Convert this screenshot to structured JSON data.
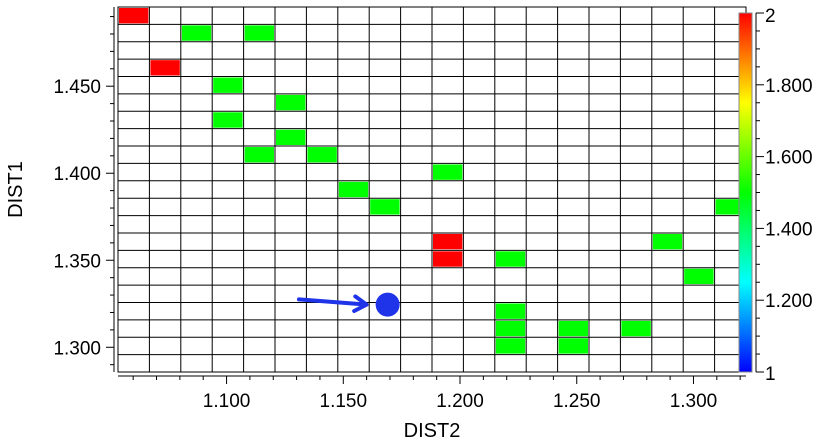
{
  "chart_data": {
    "type": "heatmap",
    "xlabel": "DIST2",
    "ylabel": "DIST1",
    "x_range": [
      1.0535,
      1.3225
    ],
    "y_range": [
      1.2858,
      1.4955
    ],
    "x_ticks": [
      "1.100",
      "1.150",
      "1.200",
      "1.250",
      "1.300"
    ],
    "x_tick_values": [
      1.1,
      1.15,
      1.2,
      1.25,
      1.3
    ],
    "y_ticks": [
      "1.300",
      "1.350",
      "1.400",
      "1.450"
    ],
    "y_tick_values": [
      1.3,
      1.35,
      1.4,
      1.45
    ],
    "x_bins": 20,
    "y_bins": 21,
    "colorbar": {
      "min": 1,
      "max": 2,
      "tick_labels": [
        "1",
        "1.200",
        "1.400",
        "1.600",
        "1.800",
        "2"
      ],
      "tick_values": [
        1,
        1.2,
        1.4,
        1.6,
        1.8,
        2
      ],
      "colormap": [
        "#0000ff",
        "#00ffff",
        "#00ff00",
        "#ffff00",
        "#ff0000"
      ]
    },
    "cells": [
      {
        "x": 1.06,
        "y": 1.4905,
        "value": 2
      },
      {
        "x": 1.087,
        "y": 1.4805,
        "value": 1.5
      },
      {
        "x": 1.115,
        "y": 1.4805,
        "value": 1.5
      },
      {
        "x": 1.074,
        "y": 1.4605,
        "value": 2
      },
      {
        "x": 1.101,
        "y": 1.4505,
        "value": 1.5
      },
      {
        "x": 1.128,
        "y": 1.4405,
        "value": 1.5
      },
      {
        "x": 1.101,
        "y": 1.4305,
        "value": 1.5
      },
      {
        "x": 1.128,
        "y": 1.4205,
        "value": 1.5
      },
      {
        "x": 1.115,
        "y": 1.4105,
        "value": 1.5
      },
      {
        "x": 1.142,
        "y": 1.4105,
        "value": 1.5
      },
      {
        "x": 1.196,
        "y": 1.4005,
        "value": 1.5
      },
      {
        "x": 1.155,
        "y": 1.3905,
        "value": 1.5
      },
      {
        "x": 1.169,
        "y": 1.3805,
        "value": 1.5
      },
      {
        "x": 1.318,
        "y": 1.3805,
        "value": 1.5
      },
      {
        "x": 1.196,
        "y": 1.3605,
        "value": 2
      },
      {
        "x": 1.291,
        "y": 1.3605,
        "value": 1.5
      },
      {
        "x": 1.196,
        "y": 1.3505,
        "value": 2
      },
      {
        "x": 1.223,
        "y": 1.3505,
        "value": 1.5
      },
      {
        "x": 1.304,
        "y": 1.3405,
        "value": 1.5
      },
      {
        "x": 1.223,
        "y": 1.3205,
        "value": 1.5
      },
      {
        "x": 1.223,
        "y": 1.3105,
        "value": 1.5
      },
      {
        "x": 1.25,
        "y": 1.3105,
        "value": 1.5
      },
      {
        "x": 1.277,
        "y": 1.3105,
        "value": 1.5
      },
      {
        "x": 1.223,
        "y": 1.3005,
        "value": 1.5
      },
      {
        "x": 1.25,
        "y": 1.3005,
        "value": 1.5
      }
    ],
    "annotations": [
      {
        "type": "point",
        "x": 1.169,
        "y": 1.3245,
        "color": "#1f33e8"
      },
      {
        "type": "arrow",
        "from": [
          1.131,
          1.3275
        ],
        "to": [
          1.16,
          1.3245
        ],
        "color": "#1f33e8"
      }
    ],
    "grid": true
  }
}
